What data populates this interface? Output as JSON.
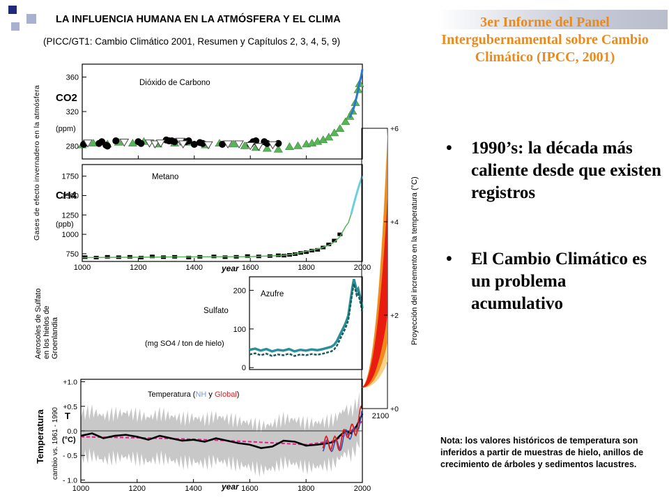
{
  "slide": {
    "title": "LA INFLUENCIA HUMANA EN LA ATMÓSFERA Y EL CLIMA",
    "subtitle": "(PICC/GT1:   Cambio Climático 2001, Resumen y Capítulos 2, 3, 4, 5, 9)",
    "right_title": "3er Informe del Panel Intergubernamental sobre Cambio Climático (IPCC, 2001)",
    "bullets": [
      "1990’s: la década más caliente desde que existen registros",
      " El Cambio Climático es un problema acumulativo"
    ],
    "bullet_symbol": "•",
    "note": "Nota: los valores históricos de temperatura son inferidos a partir de muestras de hielo, anillos de crecimiento de árboles y sedimentos lacustres.",
    "colors": {
      "right_title": "#e88a1e",
      "deco_dark": "#1f2a78",
      "deco_light": "#aab0d0",
      "co2_green": "#5ab45a",
      "co2_blue": "#2a78c8",
      "sulfate_teal": "#1a7c7c",
      "temp_gray": "#c8c8c8",
      "temp_black": "#000000",
      "temp_magenta": "#e0208a",
      "temp_red": "#e02020",
      "temp_blue": "#3050b8",
      "proj_yellow": "#f6d28a",
      "proj_orange": "#f08a1c",
      "proj_red": "#e81c10"
    }
  },
  "chart_data": [
    {
      "type": "scatter",
      "id": "co2",
      "title": "Dióxido de Carbono",
      "ylabel_lines": [
        "CO2",
        "(ppm)"
      ],
      "y_ticks": [
        280,
        320,
        360
      ],
      "ylim": [
        265,
        375
      ],
      "xlim": [
        1000,
        2000
      ],
      "group_ylabel": "Gases de efecto invernadero en la atmósfera",
      "series": [
        {
          "marker": "triangle",
          "color": "green",
          "x": [
            1000,
            1040,
            1090,
            1130,
            1180,
            1220,
            1270,
            1330,
            1380,
            1440,
            1490,
            1540,
            1580,
            1620,
            1660,
            1700,
            1740,
            1770,
            1800,
            1820,
            1840,
            1860,
            1880,
            1900,
            1920,
            1940,
            1955,
            1965,
            1975,
            1985,
            1990
          ],
          "y": [
            281,
            283,
            282,
            284,
            283,
            285,
            282,
            283,
            284,
            281,
            283,
            282,
            280,
            278,
            277,
            276,
            279,
            280,
            282,
            283,
            285,
            287,
            290,
            295,
            300,
            308,
            314,
            320,
            330,
            345,
            352
          ]
        },
        {
          "marker": "circle",
          "color": "black",
          "x": [
            1005,
            1010,
            1060,
            1070,
            1085,
            1090,
            1120,
            1200,
            1210,
            1300,
            1310,
            1320,
            1330,
            1370,
            1380,
            1400,
            1420,
            1430,
            1500,
            1600,
            1610,
            1620,
            1650,
            1660,
            1700
          ],
          "y": [
            282,
            283,
            283,
            285,
            281,
            280,
            286,
            285,
            283,
            287,
            286,
            286,
            285,
            285,
            286,
            282,
            284,
            283,
            282,
            282,
            285,
            286,
            285,
            283,
            283
          ]
        },
        {
          "marker": "triangle-down",
          "color": "white",
          "x": [
            1020,
            1150,
            1240,
            1260,
            1280,
            1350,
            1360,
            1450,
            1520,
            1560,
            1600,
            1630,
            1680
          ],
          "y": [
            283,
            284,
            283,
            282,
            283,
            285,
            282,
            281,
            282,
            282,
            280,
            279,
            281
          ]
        },
        {
          "marker": "line",
          "color": "blue",
          "x": [
            1955,
            1960,
            1965,
            1970,
            1975,
            1980,
            1985,
            1990,
            1995,
            2000
          ],
          "y": [
            313,
            317,
            320,
            325,
            331,
            338,
            345,
            354,
            360,
            369
          ]
        }
      ]
    },
    {
      "type": "scatter",
      "id": "ch4",
      "title": "Metano",
      "ylabel_lines": [
        "CH4",
        "(ppb)"
      ],
      "y_ticks": [
        750,
        1000,
        1250,
        1500,
        1750
      ],
      "ylim": [
        650,
        1900
      ],
      "x_ticks": [
        1000,
        1200,
        1400,
        1600,
        1800,
        2000
      ],
      "xlim": [
        1000,
        2000
      ],
      "xlabel": "year",
      "series": [
        {
          "marker": "square",
          "color": "black",
          "x": [
            1010,
            1050,
            1090,
            1130,
            1170,
            1210,
            1250,
            1290,
            1330,
            1380,
            1420,
            1470,
            1510,
            1550,
            1590,
            1630,
            1670,
            1700,
            1720,
            1740,
            1760,
            1780,
            1800,
            1820,
            1840,
            1860,
            1880,
            1900,
            1920
          ],
          "y": [
            705,
            700,
            710,
            705,
            710,
            700,
            715,
            705,
            710,
            700,
            710,
            715,
            705,
            710,
            720,
            715,
            720,
            730,
            725,
            735,
            745,
            760,
            770,
            790,
            800,
            830,
            870,
            920,
            1000
          ]
        },
        {
          "marker": "line",
          "color": "green",
          "x": [
            1000,
            1200,
            1400,
            1600,
            1700,
            1750,
            1800,
            1850,
            1880,
            1900,
            1920,
            1940,
            1950,
            1960,
            1970,
            1980,
            1990,
            2000
          ],
          "y": [
            700,
            705,
            710,
            712,
            725,
            740,
            780,
            820,
            860,
            900,
            970,
            1100,
            1150,
            1260,
            1400,
            1530,
            1650,
            1750
          ]
        }
      ]
    },
    {
      "type": "line",
      "id": "sulfate",
      "title": "Azufre",
      "ylabel_lines": [
        "Sulfato",
        "(mg SO4 / ton de hielo)"
      ],
      "group_ylabel": "Aerosoles de Sulfato en los hielos de Groenlandia",
      "y_ticks": [
        0,
        100,
        200
      ],
      "ylim": [
        -5,
        235
      ],
      "xlim": [
        1600,
        2000
      ],
      "series": [
        {
          "name": "sulfate",
          "color": "teal",
          "x": [
            1600,
            1620,
            1640,
            1660,
            1680,
            1700,
            1720,
            1740,
            1760,
            1780,
            1800,
            1820,
            1840,
            1860,
            1880,
            1890,
            1900,
            1910,
            1920,
            1930,
            1940,
            1950,
            1955,
            1960,
            1965,
            1970,
            1975,
            1980,
            1985,
            1990,
            1995,
            2000
          ],
          "y": [
            42,
            45,
            40,
            44,
            38,
            42,
            40,
            44,
            38,
            42,
            40,
            43,
            41,
            44,
            48,
            50,
            55,
            65,
            80,
            95,
            110,
            130,
            155,
            180,
            205,
            225,
            210,
            195,
            200,
            185,
            170,
            150
          ]
        }
      ]
    },
    {
      "type": "line",
      "id": "temperature",
      "title_parts": [
        "Temperatura  (",
        "NH",
        " y ",
        "Global",
        ")"
      ],
      "ylabel_lines": [
        "Temperatura",
        "cambio  vs.  1961 - 1990",
        "T",
        "(°C)"
      ],
      "y_ticks": [
        -1.0,
        -0.5,
        0.0,
        0.5,
        1.0
      ],
      "y_tick_labels": [
        "- 1.0",
        "- 0.5",
        "0.0",
        "+0.5",
        "+1.0"
      ],
      "ylim": [
        -1.05,
        1.05
      ],
      "x_ticks": [
        1000,
        1200,
        1400,
        1600,
        1800,
        2000
      ],
      "xlim": [
        1000,
        2000
      ],
      "xlabel": "year",
      "series": [
        {
          "name": "NH reconstrucción",
          "color": "black",
          "x": [
            1000,
            1040,
            1080,
            1120,
            1160,
            1200,
            1240,
            1280,
            1320,
            1360,
            1400,
            1440,
            1480,
            1520,
            1560,
            1600,
            1640,
            1680,
            1720,
            1760,
            1800,
            1840,
            1880,
            1900,
            1920,
            1940,
            1960,
            1980,
            2000
          ],
          "y": [
            -0.1,
            -0.05,
            -0.15,
            -0.1,
            -0.08,
            -0.12,
            -0.18,
            -0.1,
            -0.15,
            -0.2,
            -0.18,
            -0.22,
            -0.15,
            -0.2,
            -0.25,
            -0.28,
            -0.35,
            -0.32,
            -0.2,
            -0.22,
            -0.3,
            -0.28,
            -0.25,
            -0.22,
            -0.1,
            0.0,
            -0.05,
            0.1,
            0.35
          ]
        },
        {
          "name": "tendencia",
          "color": "magenta",
          "x": [
            1000,
            1200,
            1400,
            1600,
            1800,
            1900,
            1950,
            2000
          ],
          "y": [
            -0.12,
            -0.14,
            -0.17,
            -0.22,
            -0.28,
            -0.2,
            -0.05,
            0.2
          ]
        },
        {
          "name": "Global",
          "color": "red",
          "x": [
            1860,
            1880,
            1900,
            1920,
            1940,
            1960,
            1980,
            1990,
            2000
          ],
          "y": [
            -0.35,
            -0.2,
            -0.2,
            -0.15,
            0.05,
            0.0,
            0.1,
            0.35,
            0.45
          ]
        }
      ]
    },
    {
      "type": "area",
      "id": "projection",
      "ylabel": "Proyección del incremento en la temperatura (°C)",
      "y_ticks": [
        0,
        2,
        4,
        6
      ],
      "y_tick_labels": [
        "+0",
        "+2",
        "+4",
        "+6"
      ],
      "ylim": [
        0,
        6
      ],
      "x_range": [
        2000,
        2100
      ],
      "x_tick_labels": [
        "2100"
      ],
      "bands": [
        {
          "name": "outer",
          "color": "yellow",
          "low_2100": 1.0,
          "high_2100": 6.0
        },
        {
          "name": "middle",
          "color": "orange",
          "low_2100": 1.4,
          "high_2100": 5.8
        },
        {
          "name": "inner",
          "color": "red",
          "low_2100": 2.0,
          "high_2100": 4.5
        }
      ]
    }
  ]
}
